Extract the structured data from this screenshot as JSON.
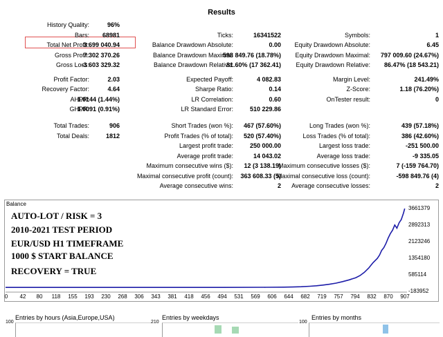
{
  "report": {
    "title": "Results",
    "block1": {
      "col1": [
        {
          "label": "History Quality:",
          "value": "96%"
        },
        {
          "label": "Bars:",
          "value": "68981"
        },
        {
          "label": "Total Net Profit:",
          "value": "3 699 040.94"
        },
        {
          "label": "Gross Profit:",
          "value": "7 302 370.26"
        },
        {
          "label": "Gross Loss:",
          "value": "-3 603 329.32"
        }
      ],
      "col2": [
        {
          "label": "Ticks:",
          "value": "16341522"
        },
        {
          "label": "Balance Drawdown Absolute:",
          "value": "0.00"
        },
        {
          "label": "Balance Drawdown Maximal:",
          "value": "598 849.76 (18.78%)"
        },
        {
          "label": "Balance Drawdown Relative:",
          "value": "81.60% (17 362.41)"
        }
      ],
      "col3": [
        {
          "label": "Symbols:",
          "value": "1"
        },
        {
          "label": "Equity Drawdown Absolute:",
          "value": "6.45"
        },
        {
          "label": "Equity Drawdown Maximal:",
          "value": "797 009.60 (24.67%)"
        },
        {
          "label": "Equity Drawdown Relative:",
          "value": "86.47% (18 543.21)"
        }
      ]
    },
    "block2": {
      "col1": [
        {
          "label": "Profit Factor:",
          "value": "2.03"
        },
        {
          "label": "Recovery Factor:",
          "value": "4.64"
        },
        {
          "label": "AHPR:",
          "value": "1.0144 (1.44%)"
        },
        {
          "label": "GHPR:",
          "value": "1.0091 (0.91%)"
        }
      ],
      "col2": [
        {
          "label": "Expected Payoff:",
          "value": "4 082.83"
        },
        {
          "label": "Sharpe Ratio:",
          "value": "0.14"
        },
        {
          "label": "LR Correlation:",
          "value": "0.60"
        },
        {
          "label": "LR Standard Error:",
          "value": "510 229.86"
        }
      ],
      "col3": [
        {
          "label": "Margin Level:",
          "value": "241.49%"
        },
        {
          "label": "Z-Score:",
          "value": "1.18 (76.20%)"
        },
        {
          "label": "OnTester result:",
          "value": "0"
        }
      ]
    },
    "block3": {
      "col1": [
        {
          "label": "Total Trades:",
          "value": "906"
        },
        {
          "label": "Total Deals:",
          "value": "1812"
        }
      ],
      "col2": [
        {
          "label": "Short Trades (won %):",
          "value": "467 (57.60%)"
        },
        {
          "label": "Profit Trades (% of total):",
          "value": "520 (57.40%)"
        },
        {
          "label": "Largest profit trade:",
          "value": "250 000.00"
        },
        {
          "label": "Average profit trade:",
          "value": "14 043.02"
        },
        {
          "label": "Maximum consecutive wins ($):",
          "value": "12 (3 138.19)"
        },
        {
          "label": "Maximal consecutive profit (count):",
          "value": "363 608.33 (5)"
        },
        {
          "label": "Average consecutive wins:",
          "value": "2"
        }
      ],
      "col3": [
        {
          "label": "Long Trades (won %):",
          "value": "439 (57.18%)"
        },
        {
          "label": "Loss Trades (% of total):",
          "value": "386 (42.60%)"
        },
        {
          "label": "Largest loss trade:",
          "value": "-251 500.00"
        },
        {
          "label": "Average loss trade:",
          "value": "-9 335.05"
        },
        {
          "label": "Maximum consecutive losses ($):",
          "value": "7 (-159 764.70)"
        },
        {
          "label": "Maximal consecutive loss (count):",
          "value": "-598 849.76 (4)"
        },
        {
          "label": "Average consecutive losses:",
          "value": "2"
        }
      ]
    }
  },
  "balance_chart": {
    "caption": "Balance",
    "overlay": [
      "AUTO-LOT / RISK = 3",
      "2010-2021 TEST PERIOD",
      "EUR/USD H1 TIMEFRAME",
      "1000 $ START BALANCE",
      "RECOVERY = TRUE"
    ],
    "line_color": "#1c1ca8"
  },
  "chart_data": {
    "type": "line",
    "title": "Balance",
    "x_ticks": [
      "0",
      "42",
      "80",
      "118",
      "155",
      "193",
      "230",
      "268",
      "306",
      "343",
      "381",
      "418",
      "456",
      "494",
      "531",
      "569",
      "606",
      "644",
      "682",
      "719",
      "757",
      "794",
      "832",
      "870",
      "907"
    ],
    "y_ticks": [
      "3661379",
      "2892313",
      "2123246",
      "1354180",
      "585114",
      "-183952"
    ],
    "ylim": [
      -183952,
      3661379
    ],
    "xlim": [
      0,
      920
    ],
    "series": [
      {
        "x": [
          0,
          100,
          200,
          300,
          400,
          500,
          600,
          640,
          660,
          680,
          700,
          715,
          730,
          745,
          760,
          775,
          790,
          805,
          815,
          825,
          835,
          845,
          855,
          860,
          865,
          870,
          875,
          880,
          885,
          890,
          895,
          900,
          905,
          910,
          915,
          918
        ],
        "y": [
          1000,
          1000,
          1100,
          1200,
          1500,
          2500,
          8000,
          15000,
          22000,
          35000,
          55000,
          80000,
          110000,
          150000,
          200000,
          270000,
          350000,
          450000,
          550000,
          700000,
          900000,
          1150000,
          1350000,
          1500000,
          1720000,
          1850000,
          2050000,
          2300000,
          2500000,
          2660000,
          2900000,
          2750000,
          3000000,
          3150000,
          3450000,
          3661379
        ]
      }
    ]
  },
  "bottom_charts": [
    {
      "title": "Entries by hours (Asia,Europe,USA)",
      "axis_top": "100"
    },
    {
      "title": "Entries by weekdays",
      "axis_top": "210"
    },
    {
      "title": "Entries by months",
      "axis_top": "100"
    }
  ]
}
